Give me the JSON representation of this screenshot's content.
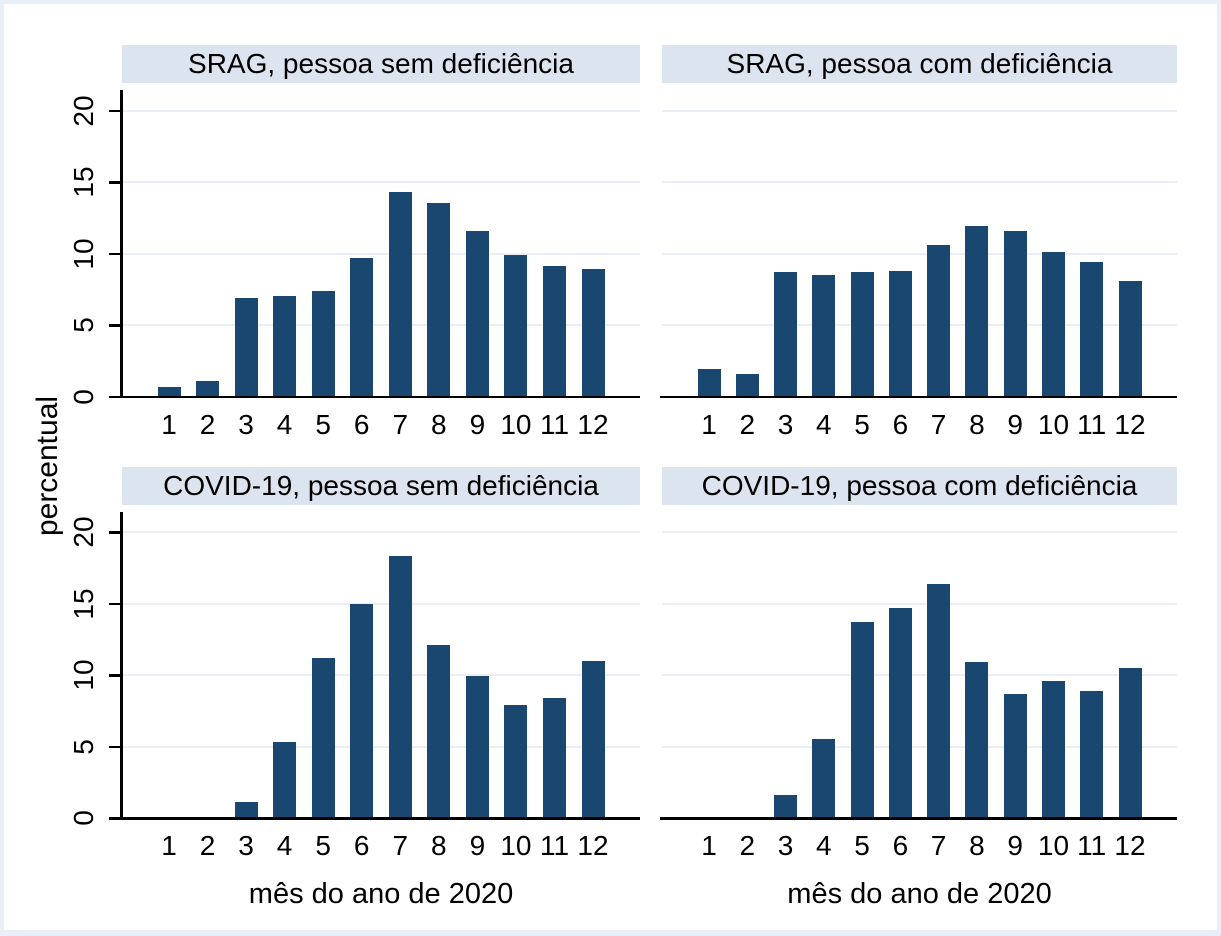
{
  "figure": {
    "ylabel": "percentual",
    "xlabel": "mês do ano de 2020"
  },
  "colors": {
    "bar": "#1a476f",
    "title_band": "#dce4f0",
    "gridline": "#e9eef7",
    "frame": "#e9eff8",
    "axis": "#000000",
    "background": "#ffffff",
    "text": "#000000"
  },
  "chart_data": [
    {
      "type": "bar",
      "title": "SRAG, pessoa sem deficiência",
      "row": 0,
      "col": 0,
      "categories": [
        "1",
        "2",
        "3",
        "4",
        "5",
        "6",
        "7",
        "8",
        "9",
        "10",
        "11",
        "12"
      ],
      "values": [
        0.7,
        1.1,
        6.9,
        7.0,
        7.4,
        9.7,
        14.3,
        13.5,
        11.6,
        9.9,
        9.1,
        8.9
      ],
      "xlabel": "",
      "ylabel": "percentual",
      "yticks": [
        0,
        5,
        10,
        15,
        20
      ],
      "ylim": [
        0,
        21.4
      ],
      "grid": true
    },
    {
      "type": "bar",
      "title": "SRAG, pessoa com deficiência",
      "row": 0,
      "col": 1,
      "categories": [
        "1",
        "2",
        "3",
        "4",
        "5",
        "6",
        "7",
        "8",
        "9",
        "10",
        "11",
        "12"
      ],
      "values": [
        1.9,
        1.6,
        8.7,
        8.5,
        8.7,
        8.8,
        10.6,
        11.9,
        11.6,
        10.1,
        9.4,
        8.1
      ],
      "xlabel": "",
      "ylabel": "percentual",
      "yticks": [
        0,
        5,
        10,
        15,
        20
      ],
      "ylim": [
        0,
        21.4
      ],
      "grid": true
    },
    {
      "type": "bar",
      "title": "COVID-19, pessoa sem deficiência",
      "row": 1,
      "col": 0,
      "categories": [
        "1",
        "2",
        "3",
        "4",
        "5",
        "6",
        "7",
        "8",
        "9",
        "10",
        "11",
        "12"
      ],
      "values": [
        0,
        0,
        1.1,
        5.3,
        11.2,
        15.0,
        18.3,
        12.1,
        9.9,
        7.9,
        8.4,
        11.0
      ],
      "xlabel": "mês do ano de 2020",
      "ylabel": "percentual",
      "yticks": [
        0,
        5,
        10,
        15,
        20
      ],
      "ylim": [
        0,
        21.4
      ],
      "grid": true
    },
    {
      "type": "bar",
      "title": "COVID-19, pessoa com deficiência",
      "row": 1,
      "col": 1,
      "categories": [
        "1",
        "2",
        "3",
        "4",
        "5",
        "6",
        "7",
        "8",
        "9",
        "10",
        "11",
        "12"
      ],
      "values": [
        0,
        0,
        1.6,
        5.5,
        13.7,
        14.7,
        16.4,
        10.9,
        8.7,
        9.6,
        8.9,
        10.5
      ],
      "xlabel": "mês do ano de 2020",
      "ylabel": "percentual",
      "yticks": [
        0,
        5,
        10,
        15,
        20
      ],
      "ylim": [
        0,
        21.4
      ],
      "grid": true
    }
  ]
}
